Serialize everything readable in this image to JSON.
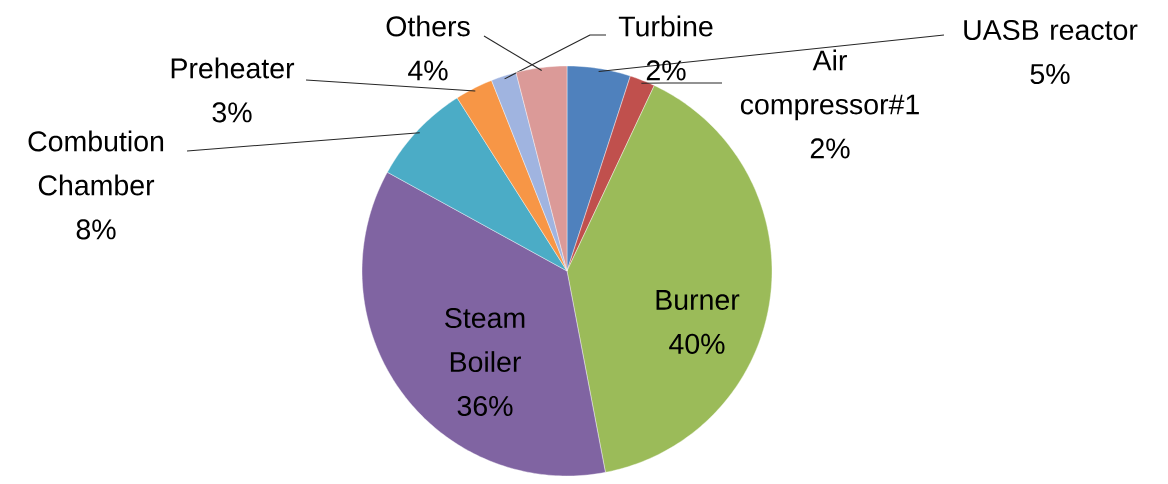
{
  "chart_data": {
    "type": "pie",
    "categories": [
      "UASB reactor",
      "Air compressor#1",
      "Burner",
      "Steam Boiler",
      "Combution Chamber",
      "Preheater",
      "Turbine",
      "Others"
    ],
    "values": [
      5,
      2,
      40,
      36,
      8,
      3,
      2,
      4
    ],
    "colors": [
      "#4f81bd",
      "#c0504d",
      "#9bbb59",
      "#8064a2",
      "#4bacc6",
      "#f79646",
      "#a0b4e0",
      "#db9a98"
    ],
    "value_labels": [
      "5%",
      "2%",
      "40%",
      "36%",
      "8%",
      "3%",
      "2%",
      "4%"
    ]
  }
}
